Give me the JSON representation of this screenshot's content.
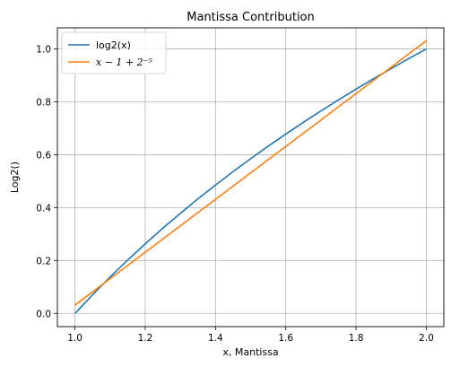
{
  "chart_data": {
    "type": "line",
    "title": "Mantissa Contribution",
    "xlabel": "x, Mantissa",
    "ylabel": "Log2()",
    "xlim": [
      0.95,
      2.05
    ],
    "ylim": [
      -0.05,
      1.08
    ],
    "xticks": [
      1.0,
      1.2,
      1.4,
      1.6,
      1.8,
      2.0
    ],
    "xtick_labels": [
      "1.0",
      "1.2",
      "1.4",
      "1.6",
      "1.8",
      "2.0"
    ],
    "yticks": [
      0.0,
      0.2,
      0.4,
      0.6,
      0.8,
      1.0
    ],
    "ytick_labels": [
      "0.0",
      "0.2",
      "0.4",
      "0.6",
      "0.8",
      "1.0"
    ],
    "grid": true,
    "legend_position": "top-left",
    "series": [
      {
        "name": "log2(x)",
        "color": "#1f77b4",
        "x": [
          1.0,
          1.05,
          1.1,
          1.15,
          1.2,
          1.25,
          1.3,
          1.35,
          1.4,
          1.45,
          1.5,
          1.55,
          1.6,
          1.65,
          1.7,
          1.75,
          1.8,
          1.85,
          1.9,
          1.95,
          2.0
        ],
        "y": [
          0.0,
          0.0704,
          0.1375,
          0.2016,
          0.263,
          0.3219,
          0.3785,
          0.433,
          0.4854,
          0.5361,
          0.585,
          0.6323,
          0.6781,
          0.7225,
          0.7655,
          0.8074,
          0.848,
          0.8875,
          0.926,
          0.9635,
          1.0
        ]
      },
      {
        "name": "x − 1 + 2⁻⁵",
        "color": "#ff7f0e",
        "x": [
          1.0,
          2.0
        ],
        "y": [
          0.03125,
          1.03125
        ]
      }
    ]
  }
}
